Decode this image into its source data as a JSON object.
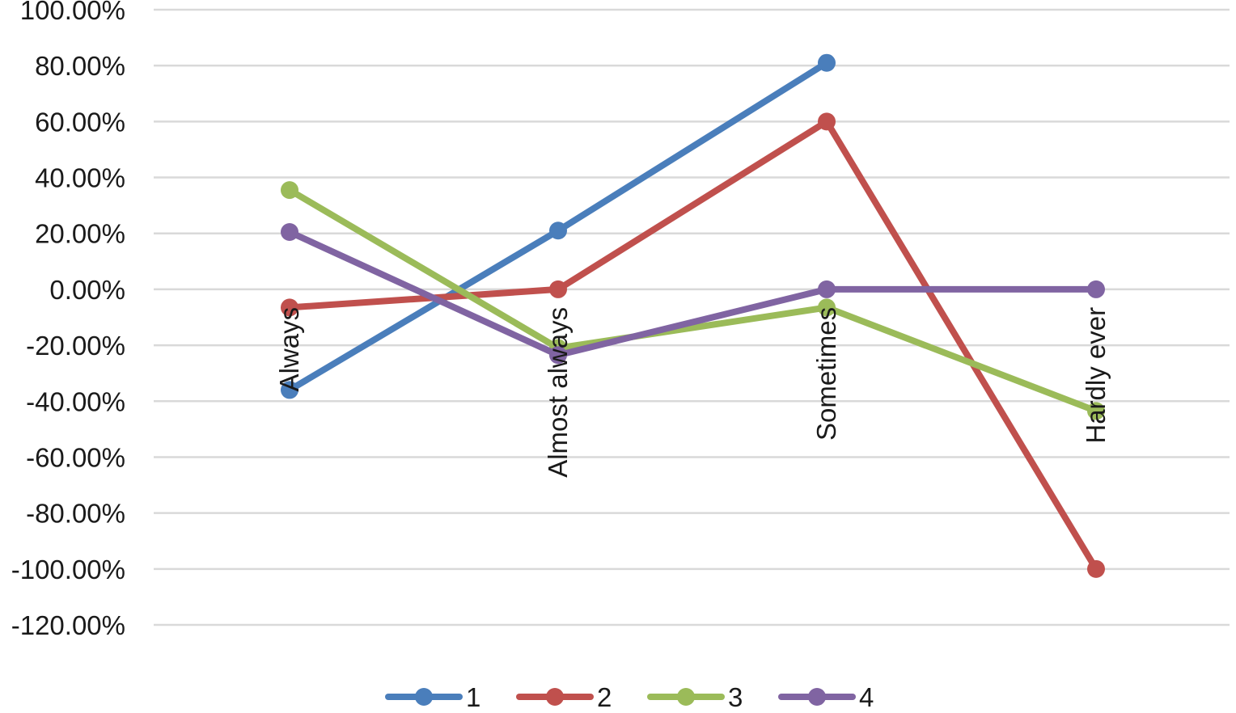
{
  "chart_data": {
    "type": "line",
    "categories": [
      "Always",
      "Almost always",
      "Sometimes",
      "Hardly ever"
    ],
    "series": [
      {
        "name": "1",
        "color": "#4a7ebb",
        "values": [
          -36,
          21,
          81,
          null
        ]
      },
      {
        "name": "2",
        "color": "#c0504d",
        "values": [
          -6.5,
          0,
          60,
          -100
        ]
      },
      {
        "name": "3",
        "color": "#9bbb59",
        "values": [
          35.5,
          -21,
          -6.5,
          -43.5
        ]
      },
      {
        "name": "4",
        "color": "#8064a2",
        "values": [
          20.5,
          -23.5,
          0,
          0
        ]
      }
    ],
    "ylim": [
      -120,
      100
    ],
    "yticks": [
      {
        "value": 100,
        "label": "100.00%"
      },
      {
        "value": 80,
        "label": "80.00%"
      },
      {
        "value": 60,
        "label": "60.00%"
      },
      {
        "value": 40,
        "label": "40.00%"
      },
      {
        "value": 20,
        "label": "20.00%"
      },
      {
        "value": 0,
        "label": "0.00%"
      },
      {
        "value": -20,
        "label": "-20.00%"
      },
      {
        "value": -40,
        "label": "-40.00%"
      },
      {
        "value": -60,
        "label": "-60.00%"
      },
      {
        "value": -80,
        "label": "-80.00%"
      },
      {
        "value": -100,
        "label": "-100.00%"
      },
      {
        "value": -120,
        "label": "-120.00%"
      }
    ],
    "grid": true,
    "legend_position": "bottom",
    "title": "",
    "xlabel": "",
    "ylabel": ""
  }
}
